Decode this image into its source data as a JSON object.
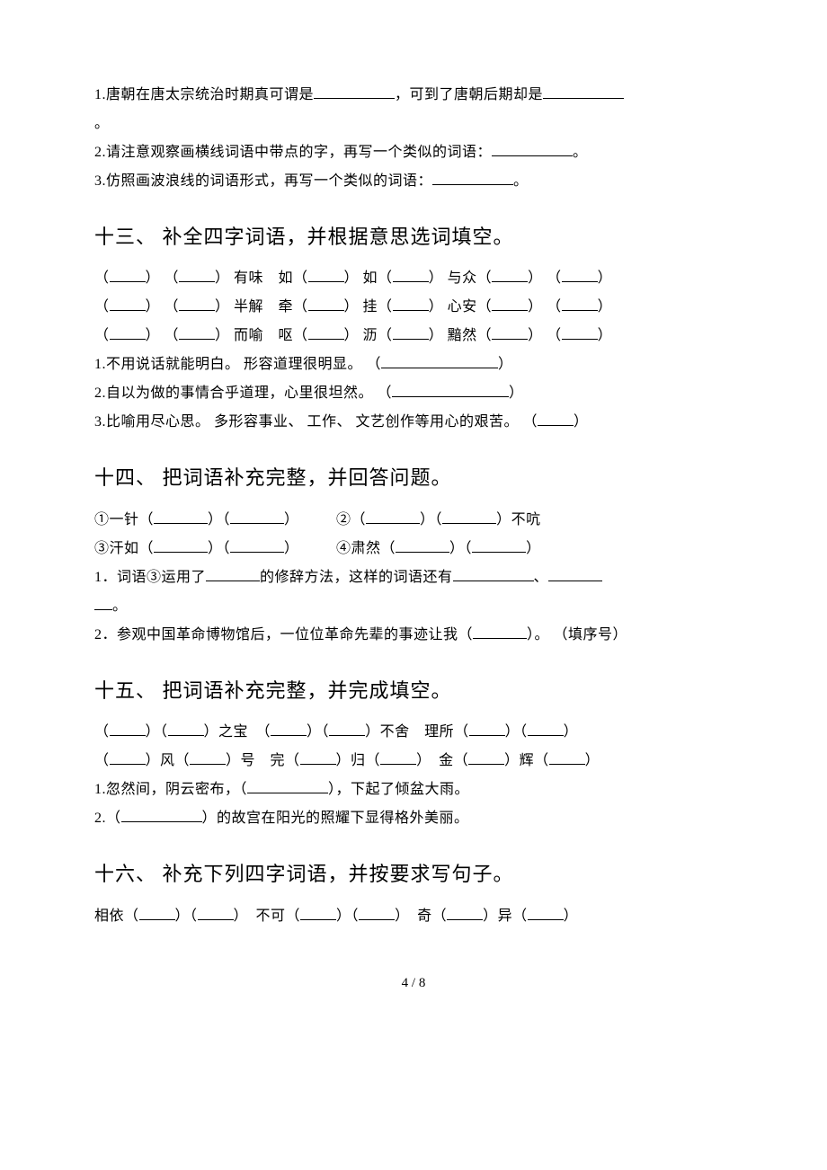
{
  "top": {
    "q1_a": "1.唐朝在唐太宗统治时期真可谓是",
    "q1_b": "，可到了唐朝后期却是",
    "q1_c": "。",
    "q2_a": "2.请注意观察画横线词语中带点的字，再写一个类似的词语：",
    "q2_b": "。",
    "q3_a": "3.仿照画波浪线的词语形式，再写一个类似的词语：",
    "q3_b": "。"
  },
  "s13": {
    "heading": "十三、 补全四字词语，并根据意思选词填空。",
    "row1": {
      "a": "（",
      "b": "） （",
      "c": "） 有味　如（",
      "d": "） 如（",
      "e": "） 与众（",
      "f": "） （",
      "g": "）"
    },
    "row2": {
      "a": "（",
      "b": "） （",
      "c": "） 半解　牵（",
      "d": "） 挂（",
      "e": "） 心安（",
      "f": "） （",
      "g": "）"
    },
    "row3": {
      "a": "（",
      "b": "） （",
      "c": "） 而喻　呕（",
      "d": "） 沥（",
      "e": "） 黯然（",
      "f": "） （",
      "g": "）"
    },
    "q1_a": "1.不用说话就能明白。 形容道理很明显。 （",
    "q1_b": "）",
    "q2_a": "2.自以为做的事情合乎道理，心里很坦然。 （",
    "q2_b": "）",
    "q3_a": "3.比喻用尽心思。 多形容事业、 工作、 文艺创作等用心的艰苦。 （",
    "q3_b": "）"
  },
  "s14": {
    "heading": "十四、 把词语补充完整，并回答问题。",
    "row1": {
      "a": "①一针（",
      "b": "）（",
      "c": "）　　　②（",
      "d": "）（",
      "e": "）不吭"
    },
    "row2": {
      "a": "③汗如（",
      "b": "）（",
      "c": "）　　　④肃然（",
      "d": "）（",
      "e": "）"
    },
    "q1_a": "1．词语③运用了",
    "q1_b": "的修辞方法，这样的词语还有",
    "q1_c": "、",
    "q1_d": "。",
    "q2_a": "2．参观中国革命博物馆后，一位位革命先辈的事迹让我（",
    "q2_b": "）。 （填序号）"
  },
  "s15": {
    "heading": "十五、 把词语补充完整，并完成填空。",
    "row1": {
      "a": "（",
      "b": "）（",
      "c": "）之宝　（",
      "d": "）（",
      "e": "）不舍　理所（",
      "f": "）（",
      "g": "）"
    },
    "row2": {
      "a": "（",
      "b": "）风（",
      "c": "）号　完（",
      "d": "）归（",
      "e": "）　金（",
      "f": "）辉（",
      "g": "）"
    },
    "q1_a": "1.忽然间，阴云密布，（",
    "q1_b": "），下起了倾盆大雨。",
    "q2_a": "2.（",
    "q2_b": "）的故宫在阳光的照耀下显得格外美丽。"
  },
  "s16": {
    "heading": "十六、 补充下列四字词语，并按要求写句子。",
    "row1": {
      "a": "相依（",
      "b": "）（",
      "c": "）　不可（",
      "d": "）（",
      "e": "）　奇（",
      "f": "）异（",
      "g": "）"
    }
  },
  "footer": "4 / 8"
}
